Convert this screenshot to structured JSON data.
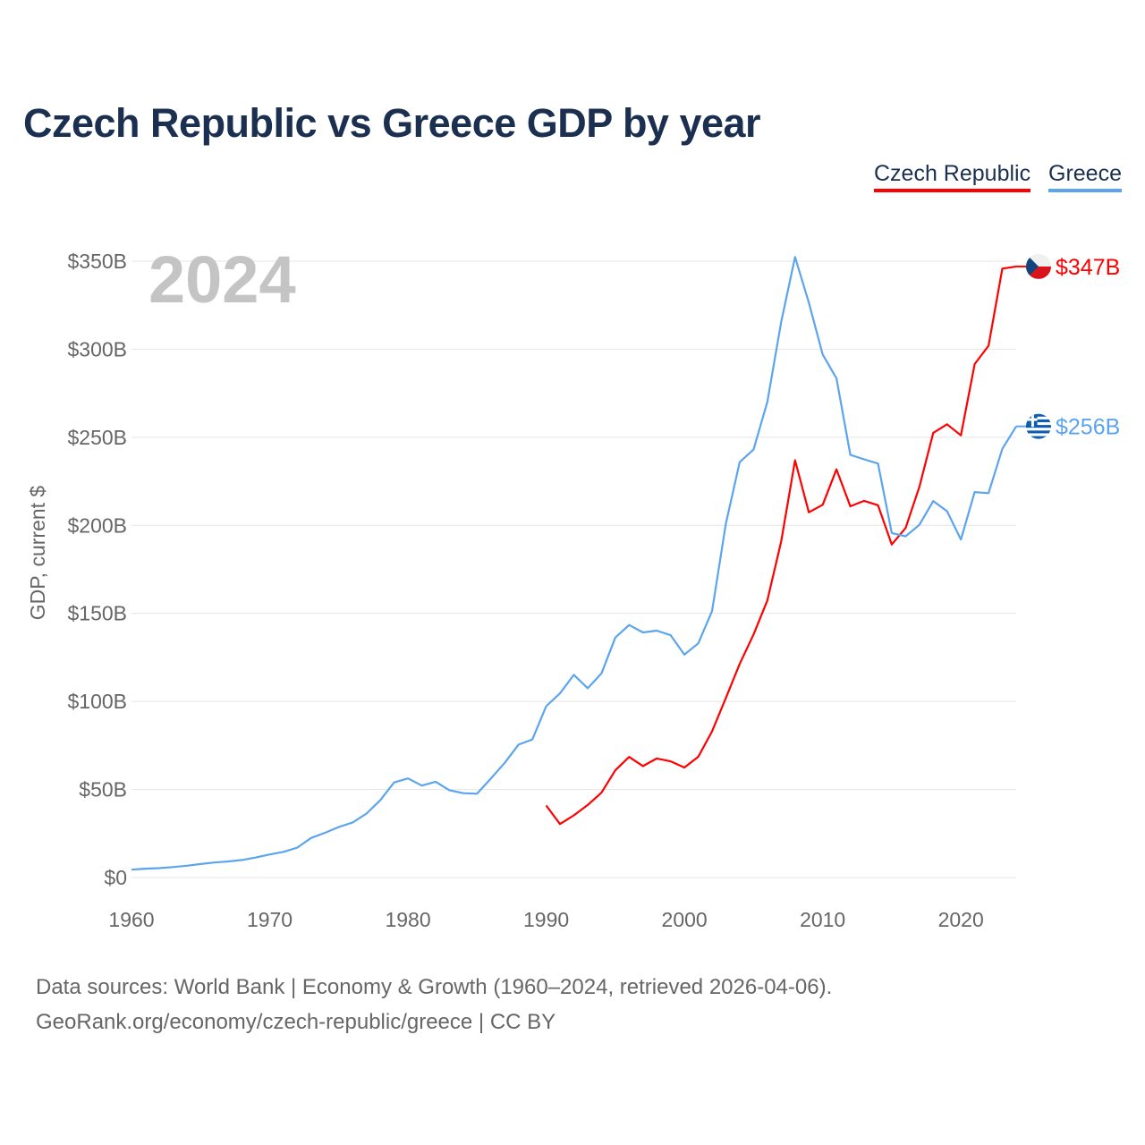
{
  "chart_data": {
    "type": "line",
    "title": "Czech Republic vs Greece GDP by year",
    "ylabel": "GDP, current $",
    "xlabel": "",
    "year_label": "2024",
    "xlim": [
      1960,
      2024
    ],
    "ylim": [
      0,
      350
    ],
    "x_ticks": [
      "1960",
      "1970",
      "1980",
      "1990",
      "2000",
      "2010",
      "2020"
    ],
    "y_ticks": [
      "$0",
      "$50B",
      "$100B",
      "$150B",
      "$200B",
      "$250B",
      "$300B",
      "$350B"
    ],
    "grid": true,
    "legend_position": "top-right",
    "series": [
      {
        "name": "Czech Republic",
        "color": "#ff0000",
        "end_label": "$347B",
        "flag": "czech-flag",
        "start_year": 1990,
        "values": [
          40.9,
          30.4,
          35.3,
          41.2,
          48.2,
          60.9,
          68.5,
          63.3,
          67.6,
          66.0,
          62.5,
          68.6,
          83.0,
          102.0,
          121.3,
          138.0,
          157.3,
          190.9,
          236.9,
          207.4,
          211.7,
          231.8,
          210.8,
          213.9,
          211.4,
          189.1,
          198.5,
          221.9,
          252.5,
          257.4,
          251.1,
          291.6,
          302.0,
          345.8,
          347.0
        ]
      },
      {
        "name": "Greece",
        "color": "#5ba4ee",
        "end_label": "$256B",
        "flag": "greece-flag",
        "start_year": 1960,
        "values": [
          4.45,
          5.02,
          5.31,
          5.93,
          6.69,
          7.68,
          8.54,
          9.14,
          9.97,
          11.4,
          13.1,
          14.6,
          17.0,
          22.5,
          25.4,
          28.7,
          31.3,
          36.3,
          44.0,
          54.0,
          56.3,
          52.2,
          54.4,
          49.6,
          47.9,
          47.6,
          56.3,
          65.1,
          75.5,
          78.4,
          97.3,
          104.6,
          115.1,
          107.5,
          115.9,
          136.3,
          143.4,
          139.2,
          140.2,
          137.6,
          126.6,
          133.0,
          151.3,
          201.1,
          235.9,
          243.0,
          270.1,
          315.5,
          352.4,
          326.5,
          297.0,
          283.5,
          240.0,
          237.5,
          235.1,
          195.6,
          193.8,
          200.3,
          213.8,
          208.0,
          191.9,
          218.9,
          218.3,
          243.4,
          256.2
        ]
      }
    ]
  },
  "source": {
    "line1": "Data sources: World Bank | Economy & Growth (1960–2024, retrieved 2026-04-06).",
    "line2": "GeoRank.org/economy/czech-republic/greece | CC BY"
  }
}
